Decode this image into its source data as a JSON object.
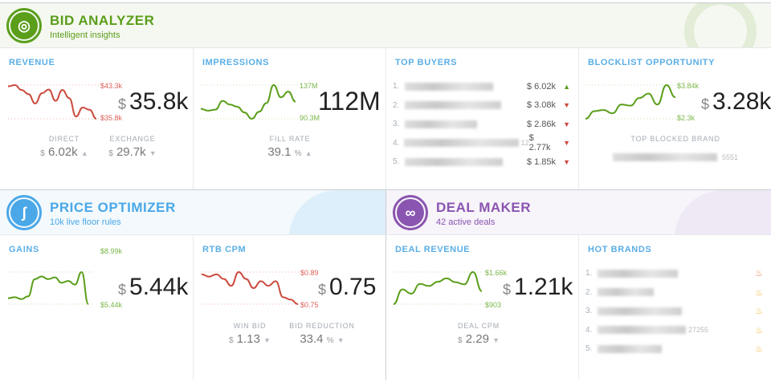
{
  "bid_analyzer": {
    "title": "BID ANALYZER",
    "subtitle": "Intelligent insights",
    "color": "#5a9e1a"
  },
  "price_optimizer": {
    "title": "PRICE OPTIMIZER",
    "subtitle": "10k live floor rules",
    "color": "#4aa8e8"
  },
  "deal_maker": {
    "title": "DEAL MAKER",
    "subtitle": "42 active deals",
    "color": "#8a55b0"
  },
  "revenue": {
    "title": "REVENUE",
    "max": "$43.3k",
    "min": "$35.8k",
    "currency": "$",
    "value": "35.8k",
    "trend_color": "#cc4b3f",
    "series": [
      43,
      43.3,
      42.2,
      41.3,
      39.2,
      41.5,
      42.3,
      39.8,
      42.2,
      40.4,
      36.3,
      38.3,
      37.8,
      35.8
    ],
    "direct": {
      "label": "DIRECT",
      "currency": "$",
      "value": "6.02k",
      "trend": "up"
    },
    "exchange": {
      "label": "EXCHANGE",
      "currency": "$",
      "value": "29.7k",
      "trend": "down"
    }
  },
  "impressions": {
    "title": "IMPRESSIONS",
    "max": "137M",
    "min": "90.3M",
    "value": "112M",
    "trend_color": "#5a9e1a",
    "series": [
      104,
      101.5,
      103,
      115,
      110,
      107,
      99,
      90.3,
      100,
      112,
      137,
      120,
      128,
      114
    ],
    "fill_rate": {
      "label": "FILL RATE",
      "value": "39.1",
      "unit": "%",
      "trend": "up"
    }
  },
  "top_buyers": {
    "title": "TOP BUYERS",
    "items": [
      {
        "rank": "1.",
        "suffix": "",
        "amount": "$ 6.02k",
        "trend": "up"
      },
      {
        "rank": "2.",
        "suffix": "",
        "amount": "$ 3.08k",
        "trend": "down"
      },
      {
        "rank": "3.",
        "suffix": "",
        "amount": "$ 2.86k",
        "trend": "down"
      },
      {
        "rank": "4.",
        "suffix": "12",
        "amount": "$ 2.77k",
        "trend": "down"
      },
      {
        "rank": "5.",
        "suffix": "",
        "amount": "$ 1.85k",
        "trend": "down"
      }
    ]
  },
  "blocklist": {
    "title": "BLOCKLIST OPPORTUNITY",
    "max": "$3.84k",
    "min": "$2.3k",
    "currency": "$",
    "value": "3.28k",
    "trend_color": "#5a9e1a",
    "series": [
      2.3,
      2.65,
      2.7,
      2.55,
      2.95,
      2.9,
      3.25,
      3.45,
      2.95,
      3.84,
      3.28
    ],
    "top_blocked": {
      "label": "TOP BLOCKED BRAND",
      "suffix": "5551"
    }
  },
  "gains": {
    "title": "GAINS",
    "max": "$8.99k",
    "min": "$5.44k",
    "currency": "$",
    "value": "5.44k",
    "trend_color": "#5a9e1a",
    "series": [
      6.1,
      6.2,
      6.0,
      6.3,
      8.2,
      8.5,
      8.2,
      8.4,
      7.8,
      8.0,
      7.6,
      8.99,
      5.44
    ]
  },
  "rtb_cpm": {
    "title": "RTB CPM",
    "max": "$0.89",
    "min": "$0.75",
    "currency": "$",
    "value": "0.75",
    "trend_color": "#cc4b3f",
    "series": [
      0.88,
      0.87,
      0.88,
      0.86,
      0.83,
      0.89,
      0.86,
      0.82,
      0.85,
      0.83,
      0.85,
      0.78,
      0.77,
      0.75
    ],
    "win_bid": {
      "label": "WIN BID",
      "currency": "$",
      "value": "1.13",
      "trend": "down"
    },
    "bid_reduction": {
      "label": "BID REDUCTION",
      "value": "33.4",
      "unit": "%",
      "trend": "down"
    }
  },
  "deal_revenue": {
    "title": "DEAL REVENUE",
    "max": "$1.66k",
    "min": "$903",
    "currency": "$",
    "value": "1.21k",
    "trend_color": "#5a9e1a",
    "series": [
      903,
      1250,
      1150,
      1380,
      1330,
      1430,
      1510,
      1420,
      1370,
      1660,
      1210
    ],
    "deal_cpm": {
      "label": "DEAL CPM",
      "currency": "$",
      "value": "2.29",
      "trend": "down"
    }
  },
  "hot_brands": {
    "title": "HOT BRANDS",
    "items": [
      {
        "rank": "1.",
        "suffix": "",
        "icon": "fire-icon",
        "color": "#e4834f"
      },
      {
        "rank": "2.",
        "suffix": "",
        "icon": "fire-icon",
        "color": "#f2b430"
      },
      {
        "rank": "3.",
        "suffix": "",
        "icon": "fire-icon",
        "color": "#f2b430"
      },
      {
        "rank": "4.",
        "suffix": "27255",
        "icon": "fire-icon",
        "color": "#f2b430"
      },
      {
        "rank": "5.",
        "suffix": "",
        "icon": "fire-icon",
        "color": "#f2b430"
      }
    ]
  }
}
